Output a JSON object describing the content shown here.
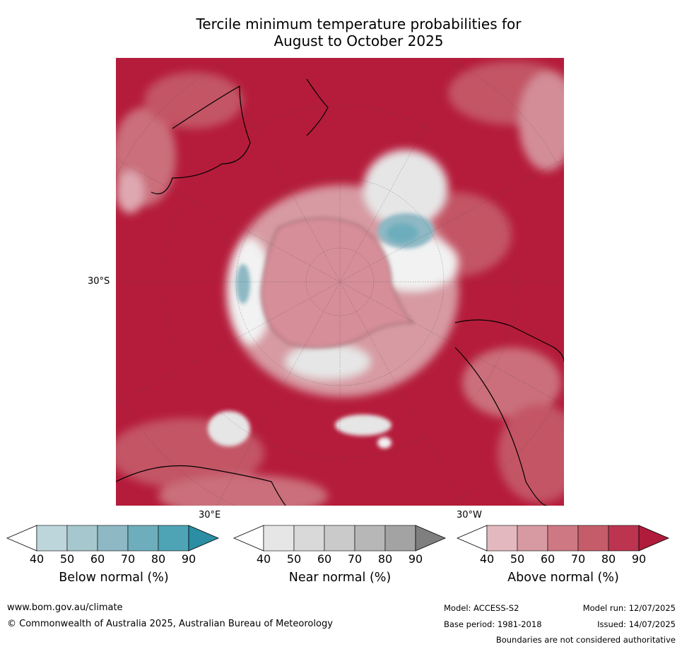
{
  "title_line1": "Tercile minimum temperature probabilities for",
  "title_line2": "August to October 2025",
  "map": {
    "lat_label": "30°S",
    "lon_label_east": "30°E",
    "lon_label_west": "30°W",
    "colors": {
      "above_dominant": "#b51c3b",
      "above_light": "#d68e99",
      "near_normal": "#e3e3e3",
      "below_normal": "#6ab0bd"
    }
  },
  "legends": [
    {
      "label": "Below normal (%)",
      "ticks": [
        "40",
        "50",
        "60",
        "70",
        "80",
        "90"
      ],
      "colors": [
        "#bdd6dc",
        "#a7c7ce",
        "#8db8c4",
        "#6eaebc",
        "#4ea4b5",
        "#2b8ea4"
      ]
    },
    {
      "label": "Near normal (%)",
      "ticks": [
        "40",
        "50",
        "60",
        "70",
        "80",
        "90"
      ],
      "colors": [
        "#e6e6e6",
        "#d9d9d9",
        "#cacaca",
        "#b7b7b7",
        "#a3a3a3",
        "#7f7f7f"
      ]
    },
    {
      "label": "Above normal (%)",
      "ticks": [
        "40",
        "50",
        "60",
        "70",
        "80",
        "90"
      ],
      "colors": [
        "#e3b8be",
        "#d79aa2",
        "#cd7883",
        "#c55c6a",
        "#bc3450",
        "#b01b3b"
      ]
    }
  ],
  "footer": {
    "website": "www.bom.gov.au/climate",
    "copyright": "© Commonwealth of Australia 2025, Australian Bureau of Meteorology",
    "model": "Model: ACCESS-S2",
    "base_period": "Base period: 1981-2018",
    "model_run": "Model run: 12/07/2025",
    "issued": "Issued: 14/07/2025",
    "disclaimer": "Boundaries are not considered authoritative"
  }
}
